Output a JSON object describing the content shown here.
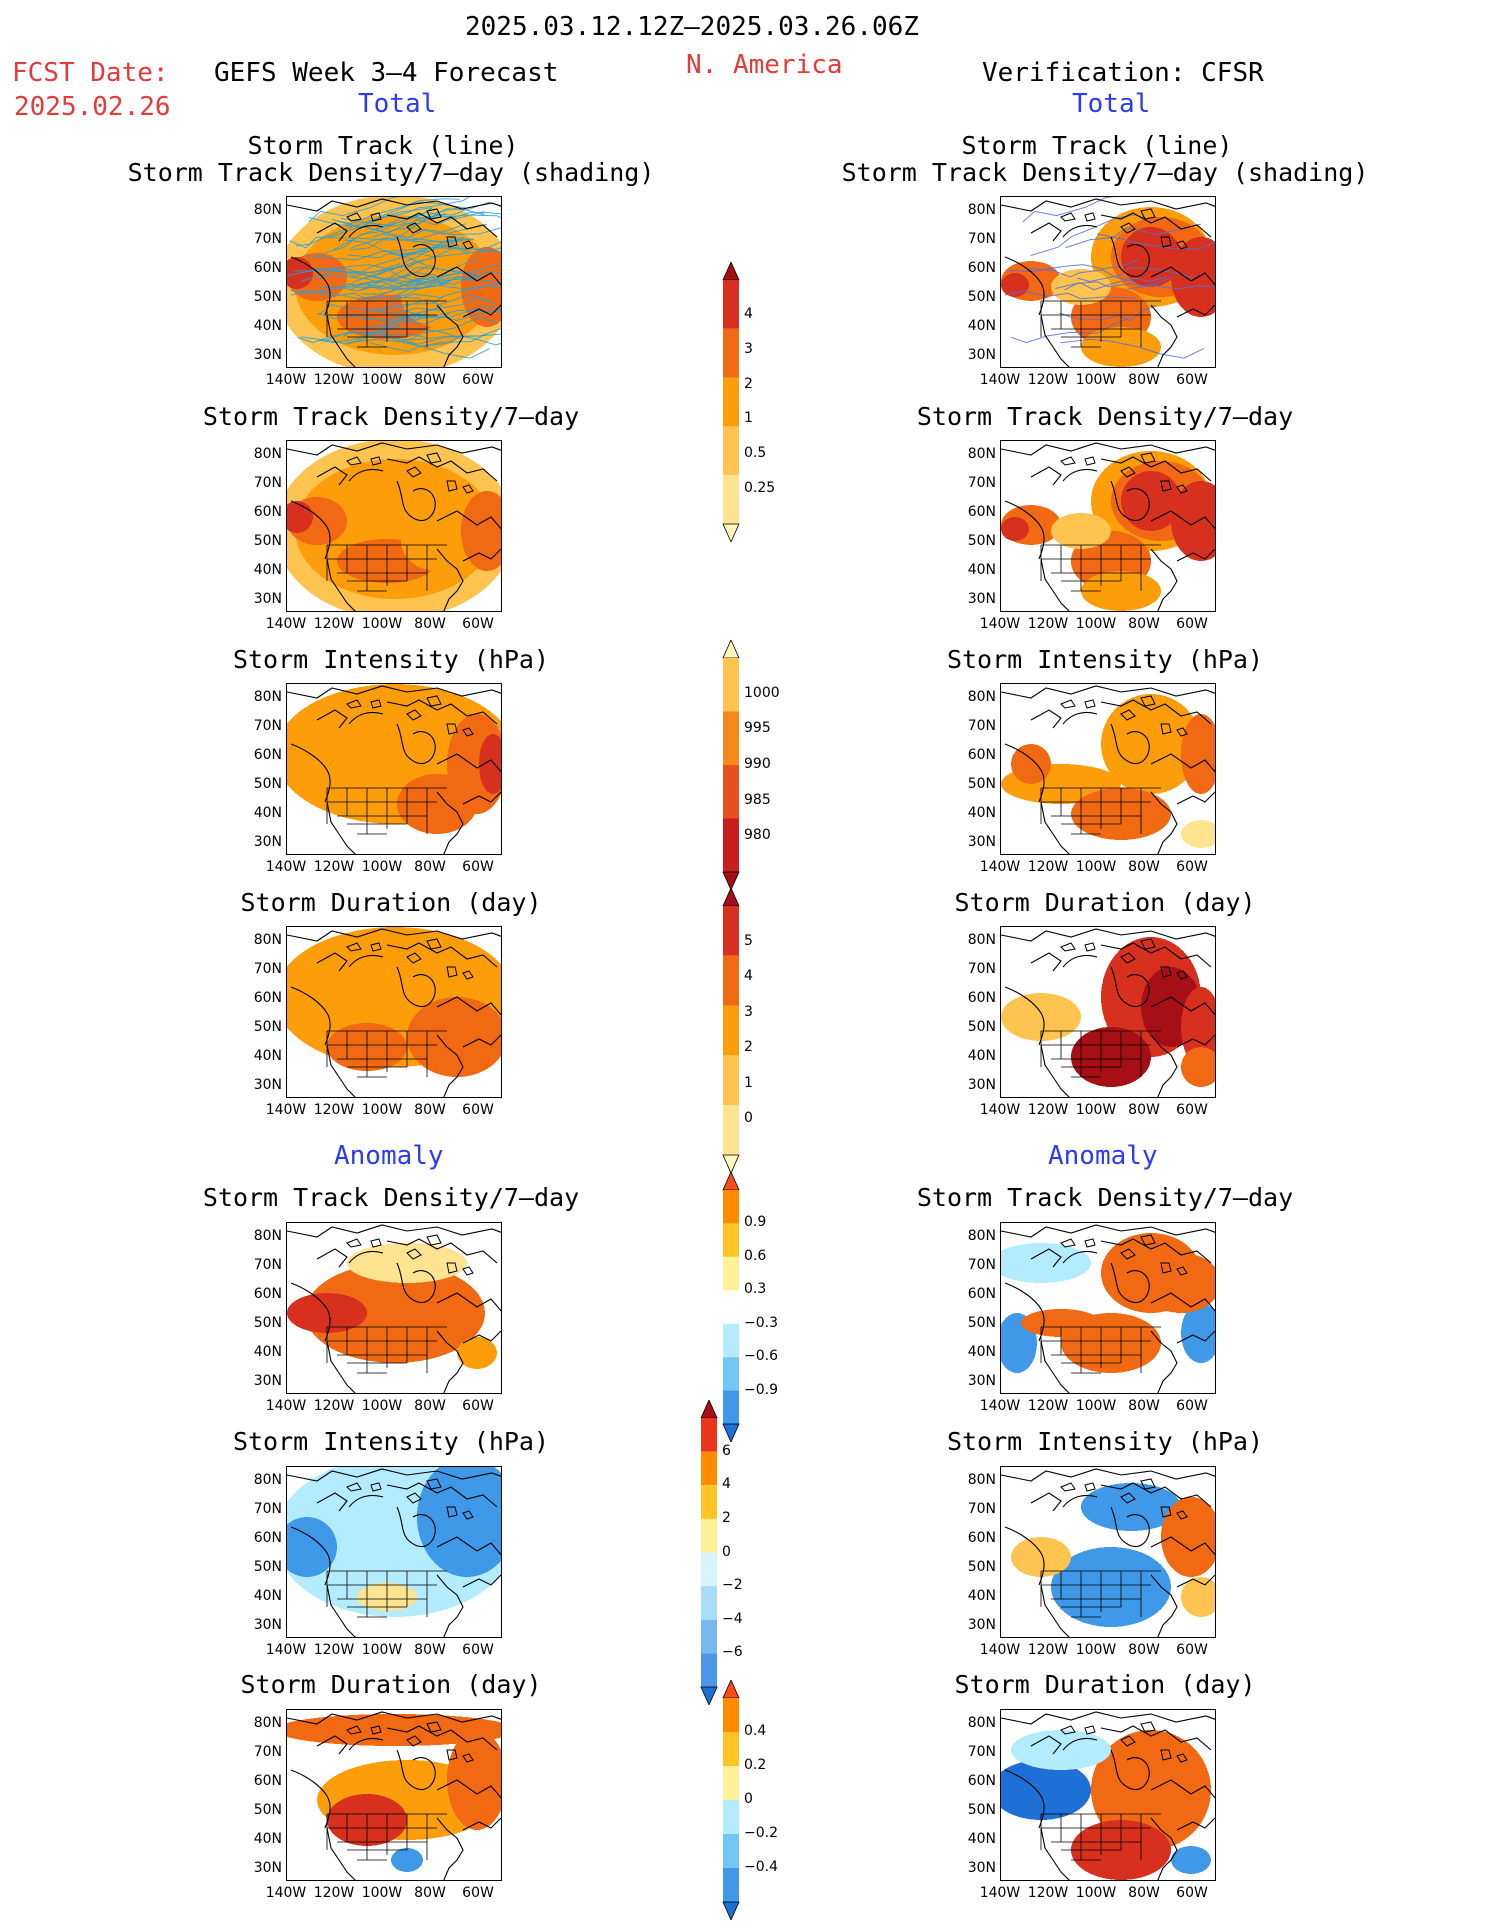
{
  "header": {
    "date_range": "2025.03.12.12Z–2025.03.26.06Z",
    "fcst_label": "FCST Date:",
    "fcst_date": "2025.02.26",
    "forecast_title": "GEFS Week 3–4 Forecast",
    "region": "N. America",
    "verification_title": "Verification: CFSR"
  },
  "sections": {
    "total": "Total",
    "anomaly": "Anomaly"
  },
  "panel_titles": {
    "track_line": "Storm Track (line)",
    "track_shading": "Storm Track Density/7–day (shading)",
    "density": "Storm Track Density/7–day",
    "intensity": "Storm Intensity (hPa)",
    "duration": "Storm Duration (day)"
  },
  "axes": {
    "lat_labels": [
      "80N",
      "70N",
      "60N",
      "50N",
      "40N",
      "30N"
    ],
    "lon_labels": [
      "140W",
      "120W",
      "100W",
      "80W",
      "60W"
    ]
  },
  "colorbars": {
    "density_total": {
      "labels": [
        "4",
        "3",
        "2",
        "1",
        "0.5",
        "0.25"
      ],
      "colors": [
        "#a50f15",
        "#d7301f",
        "#f16913",
        "#fd9d0a",
        "#fec44f",
        "#fee391",
        "#fff7bc"
      ]
    },
    "intensity_total": {
      "labels": [
        "1000",
        "995",
        "990",
        "985",
        "980"
      ],
      "colors": [
        "#fff7bc",
        "#fec44f",
        "#f7891a",
        "#e8501e",
        "#c81e1e",
        "#a50f15"
      ]
    },
    "duration_total": {
      "labels": [
        "5",
        "4",
        "3",
        "2",
        "1",
        "0"
      ],
      "colors": [
        "#a50f15",
        "#d7301f",
        "#f16913",
        "#fd9d0a",
        "#fec44f",
        "#fee391",
        "#fff7bc"
      ]
    },
    "density_anom": {
      "labels": [
        "0.9",
        "0.6",
        "0.3",
        "−0.3",
        "−0.6",
        "−0.9"
      ],
      "colors": [
        "#ff4a1a",
        "#ff8c00",
        "#ffc425",
        "#fff199",
        "#ffffff",
        "#b3ecff",
        "#72c6f5",
        "#3f98e8",
        "#1e6fd6"
      ]
    },
    "intensity_anom": {
      "labels": [
        "6",
        "4",
        "2",
        "0",
        "−2",
        "−4",
        "−6"
      ],
      "colors": [
        "#a50f15",
        "#e8351c",
        "#ff8c00",
        "#ffc425",
        "#fff199",
        "#d6f3ff",
        "#a8dcf7",
        "#79b8ef",
        "#4d95e6",
        "#1e6fd6"
      ]
    },
    "duration_anom": {
      "labels": [
        "0.4",
        "0.2",
        "0",
        "−0.2",
        "−0.4"
      ],
      "colors": [
        "#ff4a1a",
        "#ff8c00",
        "#ffc425",
        "#fff199",
        "#b3ecff",
        "#72c6f5",
        "#3f98e8",
        "#1e6fd6"
      ]
    }
  },
  "palette": {
    "dark_red": "#a50f15",
    "red": "#d7301f",
    "orange_red": "#f16913",
    "orange": "#fd9d0a",
    "light_orange": "#fec44f",
    "yellow": "#fee391",
    "blue": "#3f98e8",
    "light_blue": "#b3ecff",
    "dark_blue": "#1e6fd6",
    "track_gefs": "#2a9fd6",
    "track_cfsr": "#5570d8"
  }
}
